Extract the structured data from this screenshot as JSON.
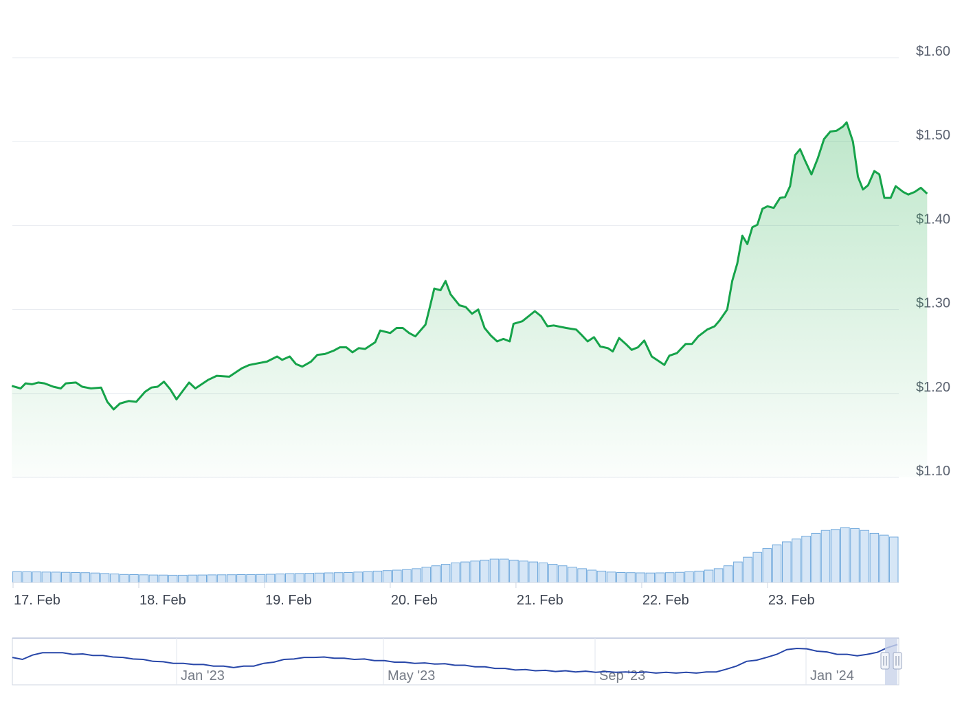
{
  "chart_data": {
    "type": "line",
    "title": "",
    "xlabel": "",
    "ylabel": "",
    "ylim": [
      1.1,
      1.6
    ],
    "y_ticks": [
      "$1.10",
      "$1.20",
      "$1.30",
      "$1.40",
      "$1.50",
      "$1.60"
    ],
    "y_tick_values": [
      1.1,
      1.2,
      1.3,
      1.4,
      1.5,
      1.6
    ],
    "x_range_days": [
      17.0,
      24.05
    ],
    "x_ticks": [
      {
        "label": "17. Feb",
        "day": 17
      },
      {
        "label": "18. Feb",
        "day": 18
      },
      {
        "label": "19. Feb",
        "day": 19
      },
      {
        "label": "20. Feb",
        "day": 20
      },
      {
        "label": "21. Feb",
        "day": 21
      },
      {
        "label": "22. Feb",
        "day": 22
      },
      {
        "label": "23. Feb",
        "day": 23
      }
    ],
    "grid": true,
    "series": [
      {
        "color": "#16a34a",
        "fill": "area-gradient",
        "points": [
          [
            16.99,
            1.209
          ],
          [
            17.06,
            1.206
          ],
          [
            17.1,
            1.212
          ],
          [
            17.15,
            1.211
          ],
          [
            17.2,
            1.213
          ],
          [
            17.25,
            1.212
          ],
          [
            17.32,
            1.208
          ],
          [
            17.38,
            1.206
          ],
          [
            17.42,
            1.212
          ],
          [
            17.5,
            1.213
          ],
          [
            17.55,
            1.208
          ],
          [
            17.62,
            1.206
          ],
          [
            17.7,
            1.207
          ],
          [
            17.75,
            1.19
          ],
          [
            17.8,
            1.181
          ],
          [
            17.85,
            1.188
          ],
          [
            17.92,
            1.191
          ],
          [
            17.98,
            1.19
          ],
          [
            18.05,
            1.202
          ],
          [
            18.1,
            1.207
          ],
          [
            18.15,
            1.208
          ],
          [
            18.2,
            1.214
          ],
          [
            18.25,
            1.205
          ],
          [
            18.3,
            1.193
          ],
          [
            18.35,
            1.203
          ],
          [
            18.4,
            1.213
          ],
          [
            18.45,
            1.206
          ],
          [
            18.55,
            1.216
          ],
          [
            18.62,
            1.221
          ],
          [
            18.72,
            1.22
          ],
          [
            18.82,
            1.23
          ],
          [
            18.88,
            1.234
          ],
          [
            18.95,
            1.236
          ],
          [
            19.02,
            1.238
          ],
          [
            19.1,
            1.244
          ],
          [
            19.14,
            1.24
          ],
          [
            19.2,
            1.244
          ],
          [
            19.25,
            1.235
          ],
          [
            19.3,
            1.232
          ],
          [
            19.37,
            1.238
          ],
          [
            19.42,
            1.246
          ],
          [
            19.48,
            1.247
          ],
          [
            19.55,
            1.251
          ],
          [
            19.6,
            1.255
          ],
          [
            19.65,
            1.255
          ],
          [
            19.7,
            1.249
          ],
          [
            19.75,
            1.254
          ],
          [
            19.8,
            1.253
          ],
          [
            19.88,
            1.261
          ],
          [
            19.92,
            1.275
          ],
          [
            20.0,
            1.272
          ],
          [
            20.05,
            1.278
          ],
          [
            20.1,
            1.278
          ],
          [
            20.15,
            1.272
          ],
          [
            20.2,
            1.268
          ],
          [
            20.28,
            1.282
          ],
          [
            20.32,
            1.306
          ],
          [
            20.35,
            1.325
          ],
          [
            20.4,
            1.323
          ],
          [
            20.44,
            1.334
          ],
          [
            20.48,
            1.318
          ],
          [
            20.55,
            1.305
          ],
          [
            20.6,
            1.303
          ],
          [
            20.65,
            1.295
          ],
          [
            20.7,
            1.3
          ],
          [
            20.75,
            1.278
          ],
          [
            20.8,
            1.269
          ],
          [
            20.85,
            1.262
          ],
          [
            20.9,
            1.265
          ],
          [
            20.95,
            1.262
          ],
          [
            20.98,
            1.283
          ],
          [
            21.05,
            1.286
          ],
          [
            21.15,
            1.298
          ],
          [
            21.2,
            1.292
          ],
          [
            21.25,
            1.28
          ],
          [
            21.3,
            1.281
          ],
          [
            21.4,
            1.278
          ],
          [
            21.48,
            1.276
          ],
          [
            21.52,
            1.27
          ],
          [
            21.57,
            1.262
          ],
          [
            21.62,
            1.267
          ],
          [
            21.67,
            1.256
          ],
          [
            21.73,
            1.254
          ],
          [
            21.77,
            1.25
          ],
          [
            21.82,
            1.266
          ],
          [
            21.88,
            1.258
          ],
          [
            21.92,
            1.252
          ],
          [
            21.97,
            1.255
          ],
          [
            22.02,
            1.263
          ],
          [
            22.08,
            1.244
          ],
          [
            22.12,
            1.24
          ],
          [
            22.18,
            1.234
          ],
          [
            22.22,
            1.245
          ],
          [
            22.28,
            1.248
          ],
          [
            22.35,
            1.259
          ],
          [
            22.4,
            1.259
          ],
          [
            22.45,
            1.268
          ],
          [
            22.52,
            1.276
          ],
          [
            22.58,
            1.28
          ],
          [
            22.62,
            1.287
          ],
          [
            22.68,
            1.3
          ],
          [
            22.72,
            1.334
          ],
          [
            22.76,
            1.355
          ],
          [
            22.8,
            1.388
          ],
          [
            22.84,
            1.378
          ],
          [
            22.88,
            1.398
          ],
          [
            22.92,
            1.401
          ],
          [
            22.96,
            1.42
          ],
          [
            23.0,
            1.423
          ],
          [
            23.05,
            1.421
          ],
          [
            23.1,
            1.433
          ],
          [
            23.14,
            1.434
          ],
          [
            23.18,
            1.447
          ],
          [
            23.22,
            1.484
          ],
          [
            23.26,
            1.491
          ],
          [
            23.3,
            1.477
          ],
          [
            23.35,
            1.461
          ],
          [
            23.4,
            1.48
          ],
          [
            23.45,
            1.503
          ],
          [
            23.5,
            1.512
          ],
          [
            23.55,
            1.513
          ],
          [
            23.6,
            1.518
          ],
          [
            23.63,
            1.523
          ],
          [
            23.68,
            1.5
          ],
          [
            23.72,
            1.458
          ],
          [
            23.76,
            1.443
          ],
          [
            23.8,
            1.448
          ],
          [
            23.85,
            1.465
          ],
          [
            23.89,
            1.461
          ],
          [
            23.93,
            1.433
          ],
          [
            23.98,
            1.433
          ],
          [
            24.02,
            1.447
          ],
          [
            24.08,
            1.44
          ],
          [
            24.12,
            1.437
          ],
          [
            24.17,
            1.44
          ],
          [
            24.22,
            1.445
          ],
          [
            24.27,
            1.438
          ]
        ]
      }
    ],
    "volume_series": {
      "color": "#6fa8dc",
      "values": [
        1.0,
        0.98,
        0.96,
        0.95,
        0.94,
        0.92,
        0.9,
        0.88,
        0.85,
        0.8,
        0.75,
        0.7,
        0.68,
        0.66,
        0.64,
        0.63,
        0.62,
        0.62,
        0.63,
        0.64,
        0.65,
        0.66,
        0.67,
        0.68,
        0.69,
        0.7,
        0.72,
        0.75,
        0.78,
        0.8,
        0.82,
        0.84,
        0.86,
        0.88,
        0.9,
        0.95,
        1.0,
        1.05,
        1.1,
        1.15,
        1.2,
        1.3,
        1.45,
        1.6,
        1.75,
        1.9,
        2.0,
        2.1,
        2.2,
        2.3,
        2.3,
        2.2,
        2.1,
        2.0,
        1.9,
        1.75,
        1.6,
        1.45,
        1.3,
        1.15,
        1.05,
        0.95,
        0.9,
        0.88,
        0.86,
        0.85,
        0.86,
        0.88,
        0.92,
        0.98,
        1.05,
        1.15,
        1.3,
        1.6,
        2.0,
        2.5,
        3.0,
        3.4,
        3.8,
        4.1,
        4.4,
        4.7,
        5.0,
        5.3,
        5.4,
        5.6,
        5.5,
        5.3,
        5.0,
        4.8,
        4.6
      ]
    },
    "navigator": {
      "ticks": [
        "Jan '23",
        "May '23",
        "Sep '23",
        "Jan '24"
      ],
      "line_color": "#2746a8",
      "values": [
        0.62,
        0.55,
        0.68,
        0.72,
        0.74,
        0.72,
        0.7,
        0.69,
        0.67,
        0.65,
        0.63,
        0.6,
        0.58,
        0.55,
        0.52,
        0.49,
        0.47,
        0.45,
        0.44,
        0.42,
        0.4,
        0.38,
        0.36,
        0.38,
        0.4,
        0.45,
        0.5,
        0.55,
        0.58,
        0.6,
        0.62,
        0.61,
        0.6,
        0.58,
        0.57,
        0.56,
        0.54,
        0.52,
        0.5,
        0.48,
        0.47,
        0.46,
        0.45,
        0.44,
        0.42,
        0.4,
        0.38,
        0.36,
        0.34,
        0.32,
        0.3,
        0.29,
        0.28,
        0.27,
        0.26,
        0.26,
        0.25,
        0.25,
        0.24,
        0.24,
        0.24,
        0.23,
        0.23,
        0.23,
        0.22,
        0.22,
        0.22,
        0.22,
        0.22,
        0.23,
        0.25,
        0.3,
        0.4,
        0.5,
        0.55,
        0.6,
        0.7,
        0.8,
        0.85,
        0.82,
        0.78,
        0.74,
        0.7,
        0.68,
        0.66,
        0.68,
        0.75,
        0.85,
        0.95
      ]
    }
  }
}
